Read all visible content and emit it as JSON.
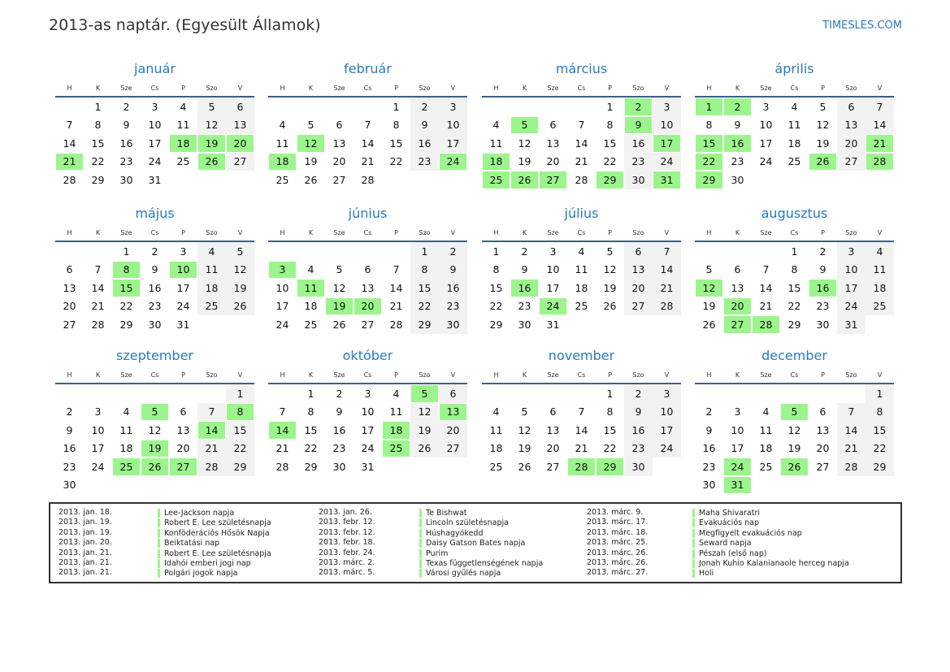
{
  "title": "2013-as naptár. (Egyesült Államok)",
  "site": "TIMESLES.COM",
  "colors": {
    "accent": "#2a7bc0",
    "holiday": "#9cf58c",
    "weekend": "#f2f2f2"
  },
  "weekdays": [
    "H",
    "K",
    "Sze",
    "Cs",
    "P",
    "Szo",
    "V"
  ],
  "months": [
    {
      "name": "január",
      "offset": 1,
      "days": 31,
      "holidays": [
        18,
        19,
        20,
        21,
        26
      ]
    },
    {
      "name": "február",
      "offset": 4,
      "days": 28,
      "holidays": [
        12,
        18,
        24
      ]
    },
    {
      "name": "március",
      "offset": 4,
      "days": 31,
      "holidays": [
        2,
        5,
        9,
        17,
        18,
        25,
        26,
        27,
        29,
        31
      ]
    },
    {
      "name": "április",
      "offset": 0,
      "days": 30,
      "holidays": [
        1,
        2,
        15,
        16,
        21,
        22,
        26,
        28,
        29
      ]
    },
    {
      "name": "május",
      "offset": 2,
      "days": 31,
      "holidays": [
        8,
        10,
        15
      ]
    },
    {
      "name": "június",
      "offset": 5,
      "days": 30,
      "holidays": [
        3,
        11,
        19,
        20
      ]
    },
    {
      "name": "július",
      "offset": 0,
      "days": 31,
      "holidays": [
        16,
        24
      ]
    },
    {
      "name": "augusztus",
      "offset": 3,
      "days": 31,
      "holidays": [
        12,
        16,
        20,
        27,
        28
      ]
    },
    {
      "name": "szeptember",
      "offset": 6,
      "days": 30,
      "holidays": [
        5,
        8,
        14,
        19,
        25,
        26,
        27
      ]
    },
    {
      "name": "október",
      "offset": 1,
      "days": 31,
      "holidays": [
        5,
        13,
        14,
        18,
        25
      ]
    },
    {
      "name": "november",
      "offset": 4,
      "days": 30,
      "holidays": [
        28,
        29
      ]
    },
    {
      "name": "december",
      "offset": 6,
      "days": 31,
      "holidays": [
        5,
        24,
        26,
        31
      ]
    }
  ],
  "holiday_list": [
    [
      {
        "date": "2013. jan. 18.",
        "name": "Lee-Jackson napja"
      },
      {
        "date": "2013. jan. 19.",
        "name": "Robert E. Lee születésnapja"
      },
      {
        "date": "2013. jan. 19.",
        "name": "Konföderációs Hősök Napja"
      },
      {
        "date": "2013. jan. 20.",
        "name": "Beiktatási nap"
      },
      {
        "date": "2013. jan. 21.",
        "name": "Robert E. Lee születésnapja"
      },
      {
        "date": "2013. jan. 21.",
        "name": "Idahói emberi jogi nap"
      },
      {
        "date": "2013. jan. 21.",
        "name": "Polgári jogok napja"
      }
    ],
    [
      {
        "date": "2013. jan. 26.",
        "name": "Te Bishwat"
      },
      {
        "date": "2013. febr. 12.",
        "name": "Lincoln születésnapja"
      },
      {
        "date": "2013. febr. 12.",
        "name": "Húshagyókedd"
      },
      {
        "date": "2013. febr. 18.",
        "name": "Daisy Gatson Bates napja"
      },
      {
        "date": "2013. febr. 24.",
        "name": "Purim"
      },
      {
        "date": "2013. márc. 2.",
        "name": "Texas függetlenségének napja"
      },
      {
        "date": "2013. márc. 5.",
        "name": "Városi gyűlés napja"
      }
    ],
    [
      {
        "date": "2013. márc. 9.",
        "name": "Maha Shivaratri"
      },
      {
        "date": "2013. márc. 17.",
        "name": "Evakuációs nap"
      },
      {
        "date": "2013. márc. 18.",
        "name": "Megfigyelt evakuációs nap"
      },
      {
        "date": "2013. márc. 25.",
        "name": "Seward napja"
      },
      {
        "date": "2013. márc. 26.",
        "name": "Pészah (első nap)"
      },
      {
        "date": "2013. márc. 26.",
        "name": "Jonah Kuhio Kalanianaole herceg napja"
      },
      {
        "date": "2013. márc. 27.",
        "name": "Holi"
      }
    ]
  ]
}
